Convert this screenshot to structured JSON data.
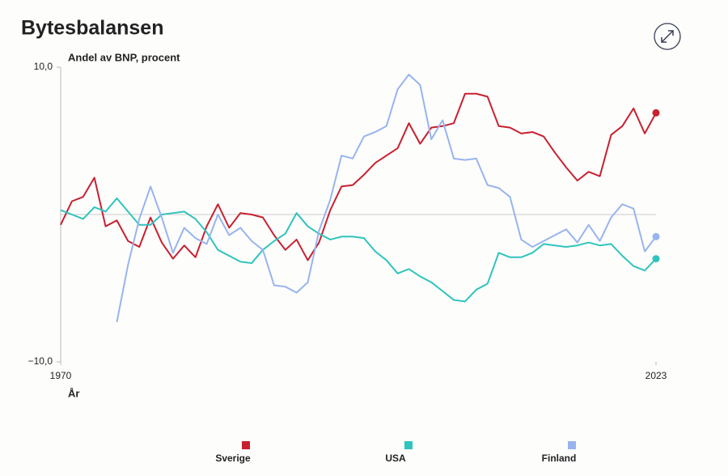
{
  "chart_data": {
    "type": "line",
    "title": "Bytesbalansen",
    "y_label": "Andel av BNP, procent",
    "x_label": "År",
    "x": [
      1970,
      1971,
      1972,
      1973,
      1974,
      1975,
      1976,
      1977,
      1978,
      1979,
      1980,
      1981,
      1982,
      1983,
      1984,
      1985,
      1986,
      1987,
      1988,
      1989,
      1990,
      1991,
      1992,
      1993,
      1994,
      1995,
      1996,
      1997,
      1998,
      1999,
      2000,
      2001,
      2002,
      2003,
      2004,
      2005,
      2006,
      2007,
      2008,
      2009,
      2010,
      2011,
      2012,
      2013,
      2014,
      2015,
      2016,
      2017,
      2018,
      2019,
      2020,
      2021,
      2022,
      2023
    ],
    "xlim": [
      1970,
      2023
    ],
    "xticks": [
      1970,
      2023
    ],
    "ylim": [
      -10,
      10
    ],
    "yticks": [
      {
        "value": 10,
        "label": "10,0"
      },
      {
        "value": -10,
        "label": "−10,0"
      }
    ],
    "series": [
      {
        "name": "Sverige",
        "color": "#c8202f",
        "values": [
          -0.7,
          0.9,
          1.2,
          2.5,
          -0.8,
          -0.4,
          -1.8,
          -2.2,
          -0.2,
          -1.9,
          -3.0,
          -2.1,
          -2.9,
          -0.8,
          0.7,
          -0.9,
          0.1,
          0,
          -0.2,
          -1.4,
          -2.4,
          -1.7,
          -3.1,
          -1.9,
          0.3,
          1.9,
          2.0,
          2.7,
          3.5,
          4.0,
          4.5,
          6.2,
          4.8,
          5.9,
          6.0,
          6.2,
          8.2,
          8.2,
          8.0,
          6.0,
          5.9,
          5.5,
          5.6,
          5.3,
          4.2,
          3.2,
          2.3,
          2.9,
          2.6,
          5.4,
          6.0,
          7.2,
          5.5,
          6.9
        ]
      },
      {
        "name": "USA",
        "color": "#2fc4bd",
        "values": [
          0.3,
          0.0,
          -0.3,
          0.5,
          0.2,
          1.1,
          0.2,
          -0.7,
          -0.7,
          0,
          0.1,
          0.2,
          -0.3,
          -1.2,
          -2.4,
          -2.8,
          -3.2,
          -3.3,
          -2.4,
          -1.8,
          -1.3,
          0.1,
          -0.8,
          -1.3,
          -1.7,
          -1.5,
          -1.5,
          -1.6,
          -2.5,
          -3.1,
          -4.0,
          -3.7,
          -4.2,
          -4.6,
          -5.2,
          -5.8,
          -5.9,
          -5.1,
          -4.7,
          -2.6,
          -2.9,
          -2.9,
          -2.6,
          -2.0,
          -2.1,
          -2.2,
          -2.1,
          -1.9,
          -2.1,
          -2.0,
          -2.8,
          -3.5,
          -3.8,
          -3.0
        ]
      },
      {
        "name": "Finland",
        "color": "#98b4ee",
        "values": [
          null,
          null,
          null,
          null,
          null,
          -7.3,
          -3.4,
          -0.3,
          1.9,
          -0.2,
          -2.6,
          -0.9,
          -1.6,
          -2.0,
          0,
          -1.4,
          -0.9,
          -1.8,
          -2.4,
          -4.8,
          -4.9,
          -5.3,
          -4.6,
          -1.1,
          1.0,
          4.0,
          3.8,
          5.3,
          5.6,
          6.0,
          8.5,
          9.5,
          8.8,
          5.1,
          6.4,
          3.8,
          3.7,
          3.8,
          2.0,
          1.8,
          1.2,
          -1.7,
          -2.2,
          -1.8,
          -1.4,
          -1.0,
          -1.9,
          -0.7,
          -1.8,
          -0.2,
          0.7,
          0.4,
          -2.5,
          -1.5
        ]
      }
    ]
  }
}
